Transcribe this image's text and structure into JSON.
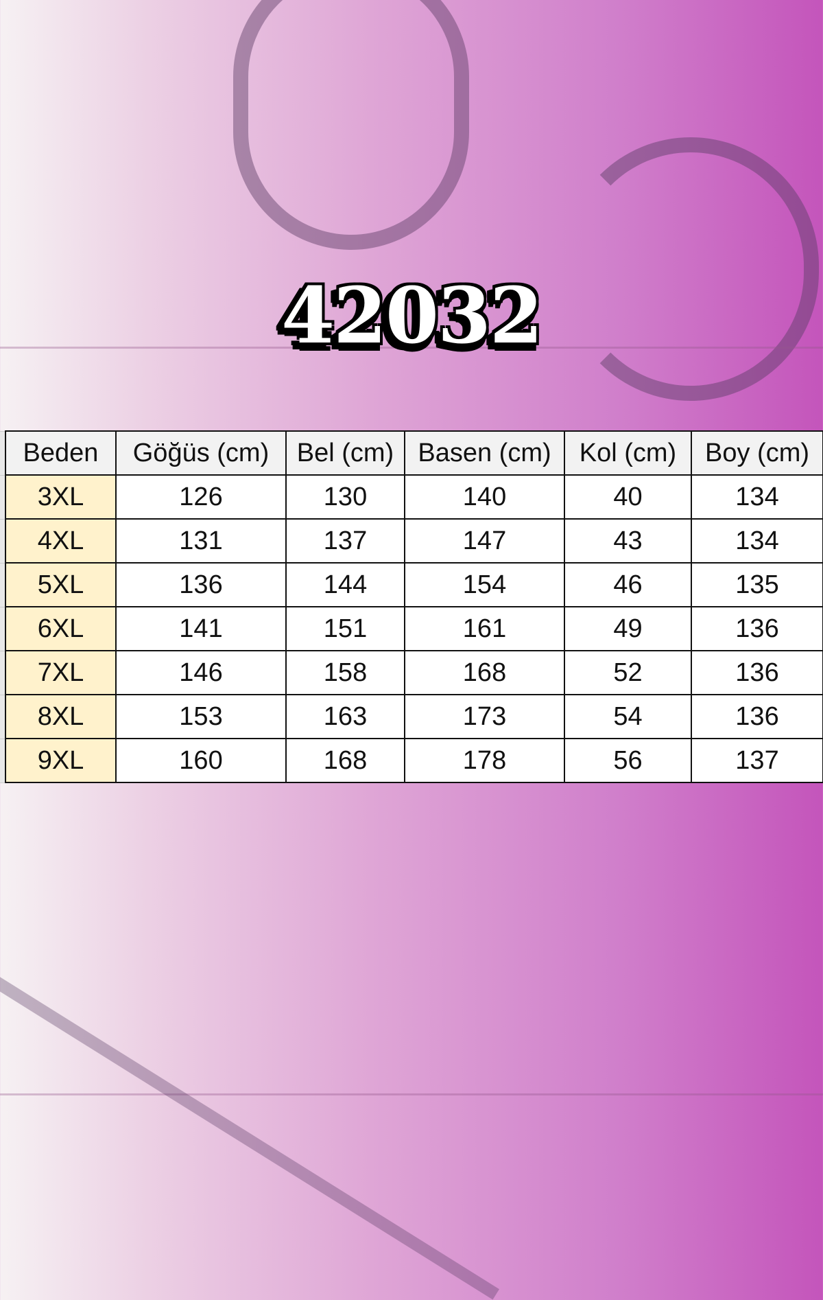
{
  "title": "42032",
  "table": {
    "headers": [
      "Beden",
      "Göğüs (cm)",
      "Bel (cm)",
      "Basen (cm)",
      "Kol (cm)",
      "Boy (cm)"
    ],
    "rows": [
      [
        "3XL",
        "126",
        "130",
        "140",
        "40",
        "134"
      ],
      [
        "4XL",
        "131",
        "137",
        "147",
        "43",
        "134"
      ],
      [
        "5XL",
        "136",
        "144",
        "154",
        "46",
        "135"
      ],
      [
        "6XL",
        "141",
        "151",
        "161",
        "49",
        "136"
      ],
      [
        "7XL",
        "146",
        "158",
        "168",
        "52",
        "136"
      ],
      [
        "8XL",
        "153",
        "163",
        "173",
        "54",
        "136"
      ],
      [
        "9XL",
        "160",
        "168",
        "178",
        "56",
        "137"
      ]
    ]
  },
  "colors": {
    "size_cell": "#fff2cc",
    "header_cell": "#f2f2f2",
    "background_accent": "#c455bb"
  }
}
